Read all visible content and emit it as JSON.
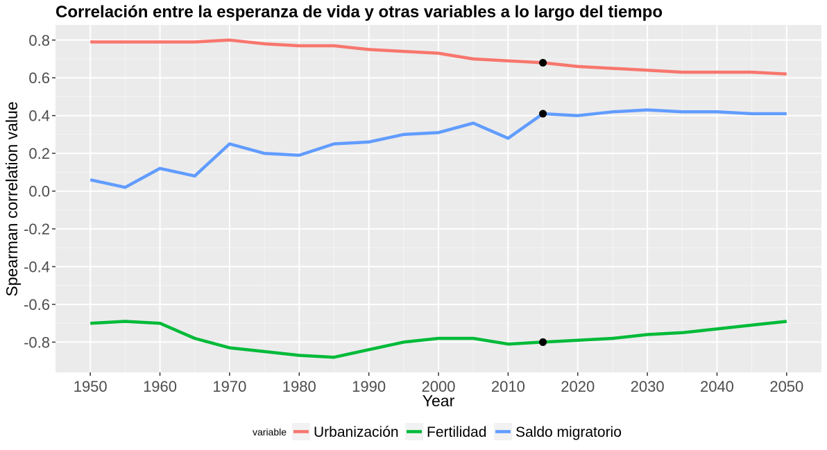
{
  "chart_data": {
    "type": "line",
    "title": "Correlación entre la esperanza de vida y otras variables a lo largo del tiempo",
    "xlabel": "Year",
    "ylabel": "Spearman correlation value",
    "xlim": [
      1945,
      2055
    ],
    "ylim": [
      -0.96,
      0.88
    ],
    "x_ticks": [
      1950,
      1960,
      1970,
      1980,
      1990,
      2000,
      2010,
      2020,
      2030,
      2040,
      2050
    ],
    "y_ticks": [
      -0.8,
      -0.6,
      -0.4,
      -0.2,
      0.0,
      0.2,
      0.4,
      0.6,
      0.8
    ],
    "y_tick_labels": [
      "-0.8",
      "-0.6",
      "-0.4",
      "-0.2",
      "0.0",
      "0.2",
      "0.4",
      "0.6",
      "0.8"
    ],
    "grid": true,
    "legend_title": "variable",
    "legend_position": "bottom",
    "x": [
      1950,
      1955,
      1960,
      1965,
      1970,
      1975,
      1980,
      1985,
      1990,
      1995,
      2000,
      2005,
      2010,
      2015,
      2020,
      2025,
      2030,
      2035,
      2040,
      2045,
      2050
    ],
    "series": [
      {
        "name": "Urbanización",
        "color": "#F8766D",
        "values": [
          0.79,
          0.79,
          0.79,
          0.79,
          0.8,
          0.78,
          0.77,
          0.77,
          0.75,
          0.74,
          0.73,
          0.7,
          0.69,
          0.68,
          0.66,
          0.65,
          0.64,
          0.63,
          0.63,
          0.63,
          0.62
        ]
      },
      {
        "name": "Fertilidad",
        "color": "#00BA38",
        "values": [
          -0.7,
          -0.69,
          -0.7,
          -0.78,
          -0.83,
          -0.85,
          -0.87,
          -0.88,
          -0.84,
          -0.8,
          -0.78,
          -0.78,
          -0.81,
          -0.8,
          -0.79,
          -0.78,
          -0.76,
          -0.75,
          -0.73,
          -0.71,
          -0.69
        ]
      },
      {
        "name": "Saldo migratorio",
        "color": "#619CFF",
        "values": [
          0.06,
          0.02,
          0.12,
          0.08,
          0.25,
          0.2,
          0.19,
          0.25,
          0.26,
          0.3,
          0.31,
          0.36,
          0.28,
          0.41,
          0.4,
          0.42,
          0.43,
          0.42,
          0.42,
          0.41,
          0.41
        ]
      }
    ],
    "highlight_points": [
      {
        "x": 2015,
        "y": 0.68
      },
      {
        "x": 2015,
        "y": 0.41
      },
      {
        "x": 2015,
        "y": -0.8
      }
    ],
    "colors": {
      "panel_background": "#EBEBEB",
      "grid_major": "#FFFFFF",
      "grid_minor": "#F5F5F5",
      "highlight_point": "#000000"
    }
  }
}
